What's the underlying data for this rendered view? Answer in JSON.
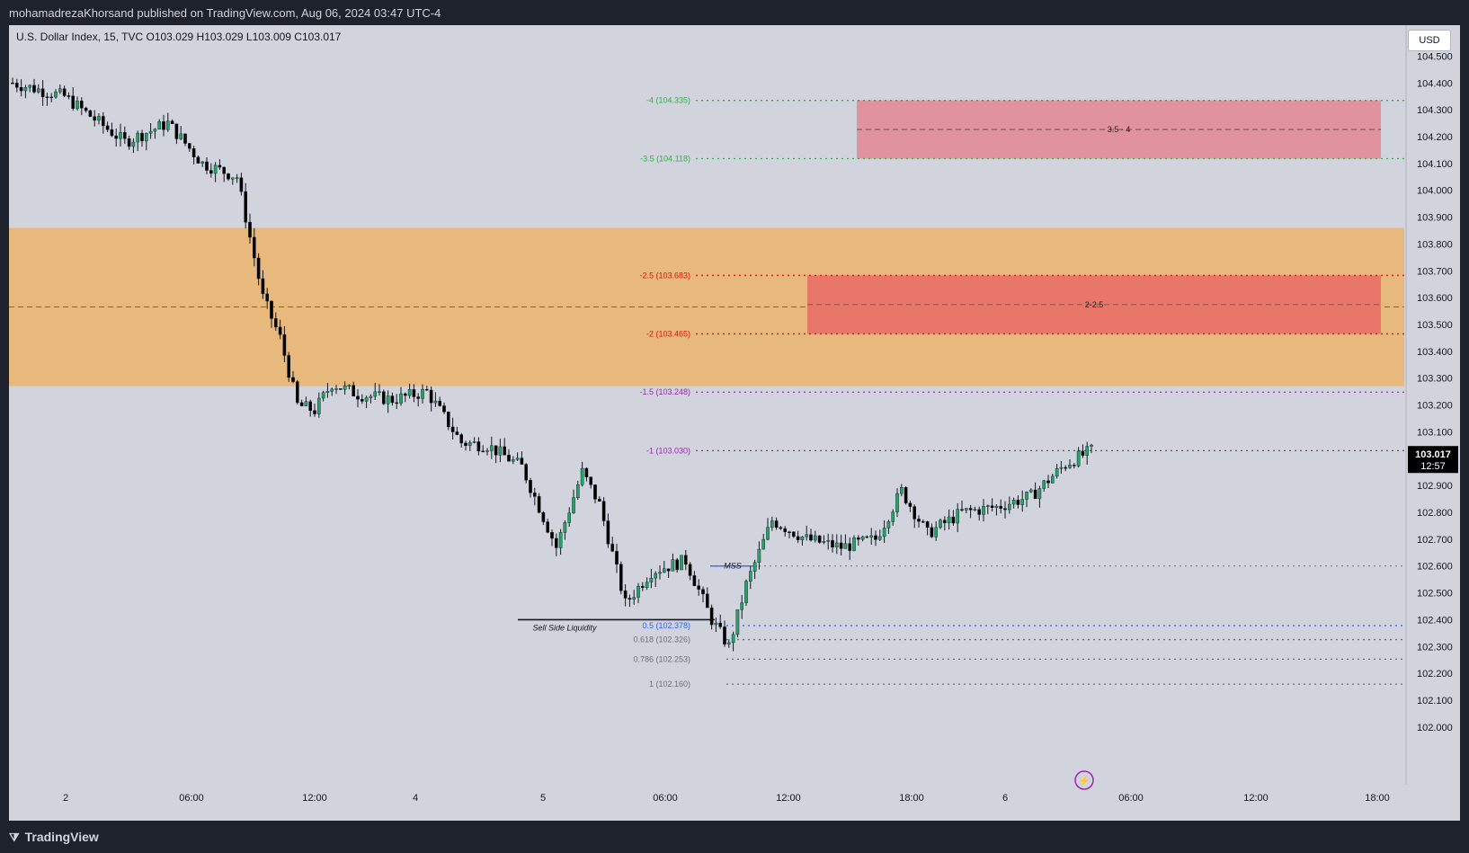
{
  "header": {
    "publisher_text": "mohamadrezaKhorsand published on TradingView.com, Aug 06, 2024 03:47 UTC-4"
  },
  "symbol_info": "U.S. Dollar Index, 15, TVC  O103.029  H103.029  L103.009  C103.017",
  "currency_label": "USD",
  "last_price": {
    "value": "103.017",
    "countdown": "12:57"
  },
  "footer": {
    "brand": "TradingView"
  },
  "colors": {
    "background": "#d1d4dc",
    "frame": "#1e222d",
    "up_candle": "#26a269",
    "down_candle": "#000000",
    "premium_zone": "#e8b97c",
    "zone_red": "#e8776a",
    "zone_pink": "#e0939e",
    "green_level": "#2fb344",
    "red_level": "#e01010",
    "purple_level": "#9c27b0",
    "blue_level": "#2962ff",
    "gray_level": "#6b6f78"
  },
  "chart_data": {
    "type": "candlestick",
    "title": "U.S. Dollar Index, 15, TVC",
    "ylim": [
      101.95,
      104.6
    ],
    "y_ticks": [
      "102.000",
      "102.100",
      "102.200",
      "102.300",
      "102.400",
      "102.500",
      "102.600",
      "102.700",
      "102.800",
      "102.900",
      "103.000",
      "103.100",
      "103.200",
      "103.300",
      "103.400",
      "103.500",
      "103.600",
      "103.700",
      "103.800",
      "103.900",
      "104.000",
      "104.100",
      "104.200",
      "104.300",
      "104.400",
      "104.500"
    ],
    "x_ticks": [
      "2",
      "06:00",
      "12:00",
      "4",
      "5",
      "06:00",
      "12:00",
      "18:00",
      "6",
      "06:00",
      "12:00",
      "18:00"
    ],
    "ohlc": {
      "open": 103.029,
      "high": 103.029,
      "low": 103.009,
      "close": 103.017
    },
    "fib_levels": [
      {
        "label": "-4 (104.335)",
        "price": 104.335,
        "color": "green"
      },
      {
        "label": "-3.5 (104.118)",
        "price": 104.118,
        "color": "green"
      },
      {
        "label": "-2.5 (103.683)",
        "price": 103.683,
        "color": "red"
      },
      {
        "label": "-2 (103.465)",
        "price": 103.465,
        "color": "red"
      },
      {
        "label": "-1.5 (103.248)",
        "price": 103.248,
        "color": "purple"
      },
      {
        "label": "-1 (103.030)",
        "price": 103.03,
        "color": "purple"
      },
      {
        "label": "0.5 (102.378)",
        "price": 102.378,
        "color": "blue"
      },
      {
        "label": "0.618 (102.326)",
        "price": 102.326,
        "color": "gray"
      },
      {
        "label": "0.786 (102.253)",
        "price": 102.253,
        "color": "gray"
      },
      {
        "label": "1 (102.160)",
        "price": 102.16,
        "color": "gray"
      }
    ],
    "zones": [
      {
        "label": "",
        "from": 103.27,
        "to": 103.86,
        "color": "premium"
      },
      {
        "label": "2-2.5",
        "from": 103.465,
        "to": 103.683,
        "color": "red"
      },
      {
        "label": "3.5 - 4",
        "from": 104.118,
        "to": 104.335,
        "color": "pink"
      }
    ],
    "annotations": [
      "Sell Side Liquidity",
      "MSS"
    ],
    "mss_price": 102.6,
    "sell_side_liquidity_price": 102.4,
    "path": [
      [
        0,
        104.4
      ],
      [
        12,
        104.35
      ],
      [
        26,
        104.18
      ],
      [
        36,
        104.25
      ],
      [
        44,
        104.1
      ],
      [
        52,
        104.05
      ],
      [
        58,
        103.6
      ],
      [
        62,
        103.45
      ],
      [
        66,
        103.2
      ],
      [
        70,
        103.18
      ],
      [
        74,
        103.28
      ],
      [
        80,
        103.24
      ],
      [
        88,
        103.22
      ],
      [
        96,
        103.25
      ],
      [
        104,
        103.06
      ],
      [
        110,
        103.05
      ],
      [
        118,
        102.97
      ],
      [
        126,
        102.67
      ],
      [
        132,
        102.95
      ],
      [
        136,
        102.83
      ],
      [
        142,
        102.46
      ],
      [
        148,
        102.58
      ],
      [
        156,
        102.62
      ],
      [
        162,
        102.4
      ],
      [
        166,
        102.3
      ],
      [
        170,
        102.53
      ],
      [
        176,
        102.77
      ],
      [
        184,
        102.7
      ],
      [
        192,
        102.67
      ],
      [
        200,
        102.7
      ],
      [
        206,
        102.88
      ],
      [
        212,
        102.72
      ],
      [
        220,
        102.8
      ],
      [
        228,
        102.82
      ],
      [
        236,
        102.86
      ],
      [
        244,
        102.98
      ],
      [
        250,
        103.03
      ]
    ]
  }
}
